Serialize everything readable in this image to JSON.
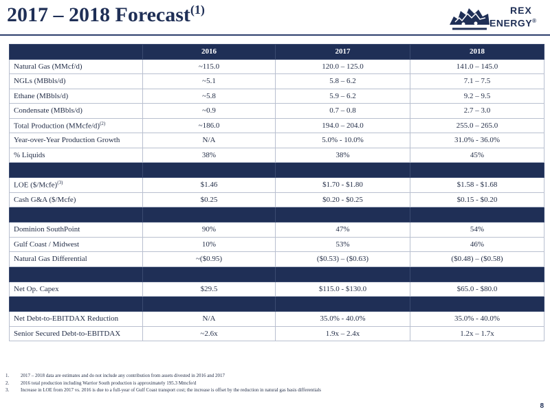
{
  "header": {
    "title": "2017 – 2018 Forecast",
    "title_note": "(1)"
  },
  "logo": {
    "line1": "REX",
    "line2": "ENERGY",
    "mark": "®"
  },
  "table": {
    "columns": [
      "",
      "2016",
      "2017",
      "2018"
    ],
    "rows": [
      {
        "type": "data",
        "metric": "Natural Gas (MMcf/d)",
        "note": "",
        "values": [
          "~115.0",
          "120.0 – 125.0",
          "141.0 – 145.0"
        ]
      },
      {
        "type": "data",
        "metric": "NGLs (MBbls/d)",
        "note": "",
        "values": [
          "~5.1",
          "5.8 – 6.2",
          "7.1 – 7.5"
        ]
      },
      {
        "type": "data",
        "metric": "Ethane (MBbls/d)",
        "note": "",
        "values": [
          "~5.8",
          "5.9 – 6.2",
          "9.2 – 9.5"
        ]
      },
      {
        "type": "data",
        "metric": "Condensate (MBbls/d)",
        "note": "",
        "values": [
          "~0.9",
          "0.7 – 0.8",
          "2.7 – 3.0"
        ]
      },
      {
        "type": "data",
        "metric": "Total Production (MMcfe/d)",
        "note": "(2)",
        "values": [
          "~186.0",
          "194.0 – 204.0",
          "255.0 – 265.0"
        ]
      },
      {
        "type": "data",
        "metric": "Year-over-Year Production Growth",
        "note": "",
        "values": [
          "N/A",
          "5.0% - 10.0%",
          "31.0% - 36.0%"
        ]
      },
      {
        "type": "data",
        "metric": "% Liquids",
        "note": "",
        "values": [
          "38%",
          "38%",
          "45%"
        ]
      },
      {
        "type": "band"
      },
      {
        "type": "data",
        "metric": "LOE ($/Mcfe)",
        "note": "(3)",
        "values": [
          "$1.46",
          "$1.70 - $1.80",
          "$1.58 - $1.68"
        ]
      },
      {
        "type": "data",
        "metric": "Cash G&A ($/Mcfe)",
        "note": "",
        "values": [
          "$0.25",
          "$0.20 - $0.25",
          "$0.15 - $0.20"
        ]
      },
      {
        "type": "band"
      },
      {
        "type": "data",
        "metric": "Dominion SouthPoint",
        "note": "",
        "values": [
          "90%",
          "47%",
          "54%"
        ]
      },
      {
        "type": "data",
        "metric": "Gulf Coast / Midwest",
        "note": "",
        "values": [
          "10%",
          "53%",
          "46%"
        ]
      },
      {
        "type": "data",
        "metric": "Natural Gas Differential",
        "note": "",
        "values": [
          "~($0.95)",
          "($0.53) – ($0.63)",
          "($0.48) – ($0.58)"
        ]
      },
      {
        "type": "band"
      },
      {
        "type": "data",
        "metric": "Net Op. Capex",
        "note": "",
        "values": [
          "$29.5",
          "$115.0 - $130.0",
          "$65.0 - $80.0"
        ]
      },
      {
        "type": "band"
      },
      {
        "type": "data",
        "metric": "Net Debt-to-EBITDAX Reduction",
        "note": "",
        "values": [
          "N/A",
          "35.0% - 40.0%",
          "35.0% - 40.0%"
        ]
      },
      {
        "type": "data",
        "metric": "Senior Secured Debt-to-EBITDAX",
        "note": "",
        "values": [
          "~2.6x",
          "1.9x – 2.4x",
          "1.2x – 1.7x"
        ]
      }
    ]
  },
  "footnotes": [
    {
      "num": "1.",
      "text": "2017 – 2018 data are estimates and do not include any contribution from assets divested in 2016 and 2017"
    },
    {
      "num": "2.",
      "text": "2016 total production including Warrior South production is approximately 195.3 Mmcfe/d"
    },
    {
      "num": "3.",
      "text": "Increase in LOE from 2017 vs. 2016 is due to a full-year of Gulf Coast transport cost; the increase is offset by the reduction in natural gas basis differentials"
    }
  ],
  "page_number": "8",
  "colors": {
    "navy": "#1f2f56",
    "grid": "#b8bfcf"
  }
}
